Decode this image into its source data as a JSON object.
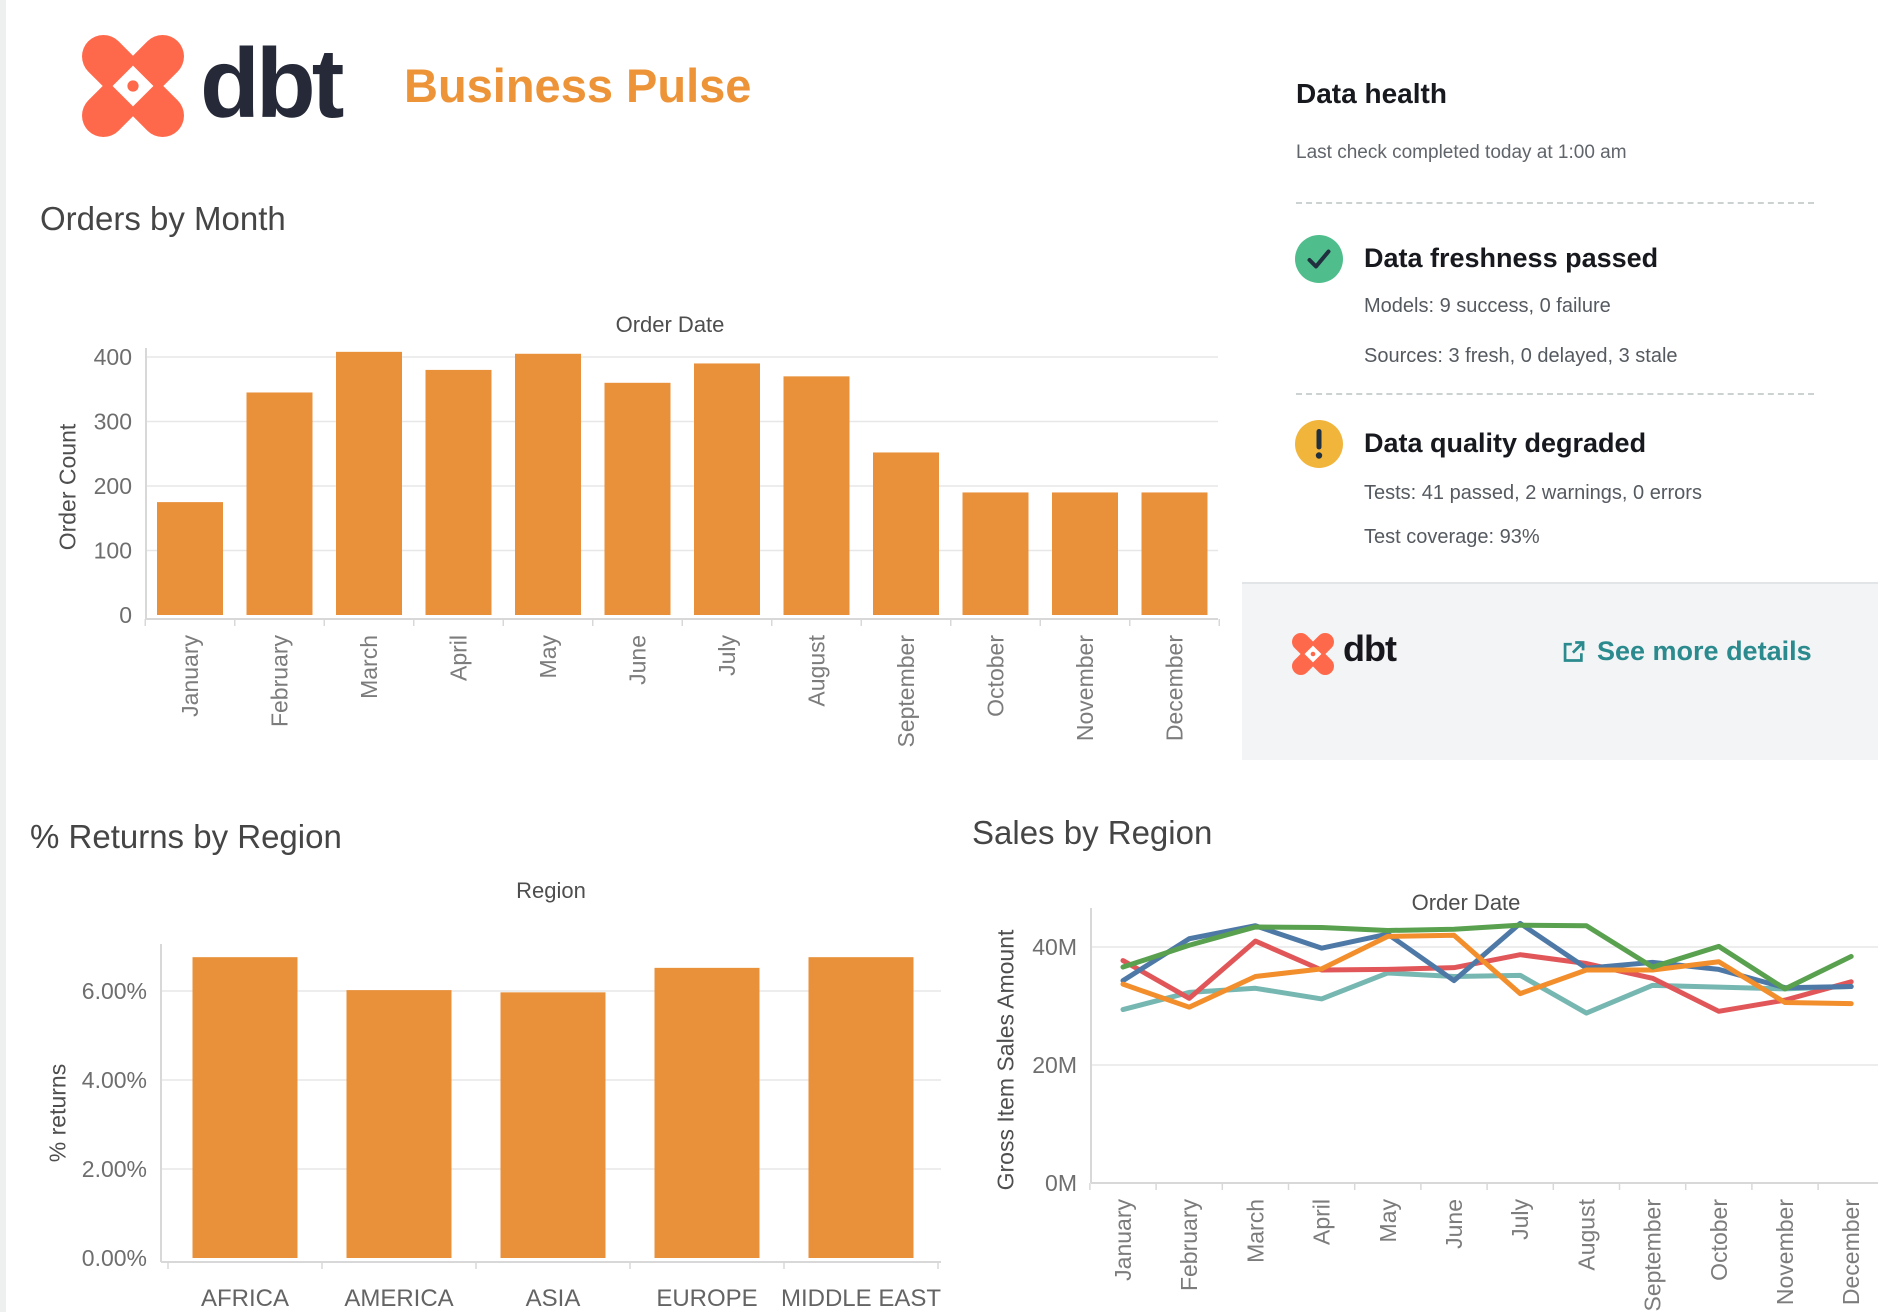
{
  "header": {
    "brand": "dbt",
    "title": "Business Pulse"
  },
  "health_panel": {
    "title": "Data health",
    "subtitle": "Last check completed today at 1:00 am",
    "statuses": [
      {
        "icon": "check",
        "color": "#4FBE8C",
        "title": "Data freshness passed",
        "lines": [
          "Models: 9 success, 0 failure",
          "Sources: 3 fresh, 0 delayed, 3 stale"
        ]
      },
      {
        "icon": "warning",
        "color": "#F1B53C",
        "title": "Data quality degraded",
        "lines": [
          "Tests: 41 passed, 2 warnings, 0 errors",
          "Test coverage: 93%"
        ]
      }
    ],
    "footer": {
      "brand": "dbt",
      "link": "See more details",
      "link_color": "#2a8a8d"
    }
  },
  "chart_data": [
    {
      "type": "bar",
      "heading": "Orders by Month",
      "title": "Order Date",
      "ylabel": "Order Count",
      "bar_color": "#E8913A",
      "categories": [
        "January",
        "February",
        "March",
        "April",
        "May",
        "June",
        "July",
        "August",
        "September",
        "October",
        "November",
        "December"
      ],
      "values": [
        175,
        345,
        408,
        380,
        405,
        360,
        390,
        370,
        252,
        190,
        190,
        190
      ],
      "ylim": [
        0,
        430
      ],
      "grid": true,
      "legend": "none",
      "yticks": [
        {
          "v": 0,
          "label": "0"
        },
        {
          "v": 100,
          "label": "100"
        },
        {
          "v": 200,
          "label": "200"
        },
        {
          "v": 300,
          "label": "300"
        },
        {
          "v": 400,
          "label": "400"
        }
      ]
    },
    {
      "type": "bar",
      "heading": "% Returns by Region",
      "title": "Region",
      "ylabel": "% returns",
      "bar_color": "#E8913A",
      "categories": [
        "AFRICA",
        "AMERICA",
        "ASIA",
        "EUROPE",
        "MIDDLE EAST"
      ],
      "values": [
        6.76,
        6.02,
        5.97,
        6.52,
        6.76
      ],
      "ylim": [
        0,
        7.4
      ],
      "grid": true,
      "legend": "none",
      "yticks": [
        {
          "v": 0,
          "label": "0.00%"
        },
        {
          "v": 2,
          "label": "2.00%"
        },
        {
          "v": 4,
          "label": "4.00%"
        },
        {
          "v": 6,
          "label": "6.00%"
        }
      ]
    },
    {
      "type": "line",
      "heading": "Sales by Region",
      "title": "Order Date",
      "ylabel": "Gross Item Sales Amount",
      "x": [
        "January",
        "February",
        "March",
        "April",
        "May",
        "June",
        "July",
        "August",
        "September",
        "October",
        "November",
        "December"
      ],
      "ylim": [
        0,
        46
      ],
      "grid": true,
      "legend": "none",
      "yticks": [
        {
          "v": 0,
          "label": "0M"
        },
        {
          "v": 20,
          "label": "20M"
        },
        {
          "v": 40,
          "label": "40M"
        }
      ],
      "series": [
        {
          "name": "teal",
          "color": "#76B7B2",
          "values": [
            29.4,
            32.3,
            33.0,
            31.2,
            35.6,
            35.0,
            35.2,
            28.8,
            33.5,
            33.2,
            32.9,
            33.3
          ]
        },
        {
          "name": "red",
          "color": "#E15759",
          "values": [
            37.7,
            31.3,
            41.0,
            36.1,
            36.2,
            36.5,
            38.7,
            37.2,
            34.7,
            29.1,
            31.0,
            34.1
          ]
        },
        {
          "name": "blue",
          "color": "#4E79A7",
          "values": [
            34.3,
            41.4,
            43.6,
            39.8,
            42.2,
            34.3,
            44.0,
            36.4,
            37.4,
            36.2,
            33.1,
            33.3
          ]
        },
        {
          "name": "orange",
          "color": "#F28E2B",
          "values": [
            33.7,
            29.8,
            35.0,
            36.3,
            41.8,
            42.0,
            32.1,
            36.1,
            36.1,
            37.5,
            30.6,
            30.4
          ]
        },
        {
          "name": "green",
          "color": "#59A14F",
          "values": [
            36.6,
            40.3,
            43.4,
            43.3,
            42.8,
            43.0,
            43.7,
            43.6,
            36.6,
            40.1,
            32.9,
            38.4
          ]
        }
      ]
    }
  ]
}
